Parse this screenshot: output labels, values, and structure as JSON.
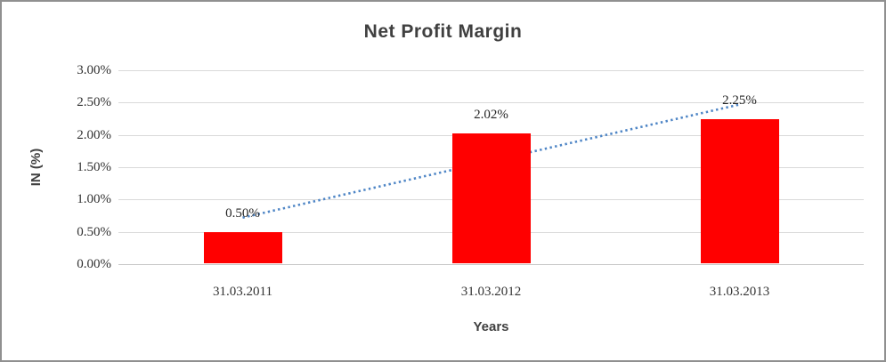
{
  "chart_data": {
    "type": "bar",
    "title": "Net Profit Margin",
    "xlabel": "Years",
    "ylabel": "IN (%)",
    "categories": [
      "31.03.2011",
      "31.03.2012",
      "31.03.2013"
    ],
    "values": [
      0.5,
      2.02,
      2.25
    ],
    "data_labels": [
      "0.50%",
      "2.02%",
      "2.25%"
    ],
    "ytick_step": 0.5,
    "ytick_labels": [
      "0.00%",
      "0.50%",
      "1.00%",
      "1.50%",
      "2.00%",
      "2.50%",
      "3.00%"
    ],
    "ylim": [
      0,
      3
    ],
    "grid": true,
    "legend": false,
    "bar_color": "#ff0000",
    "gridline_color": "#d9d9d9",
    "text_color": "#333333",
    "title_color": "#404040",
    "trendline": {
      "type": "linear",
      "style": "dotted",
      "color": "#4f86c6",
      "start_value": 0.72,
      "end_value": 2.47
    }
  }
}
